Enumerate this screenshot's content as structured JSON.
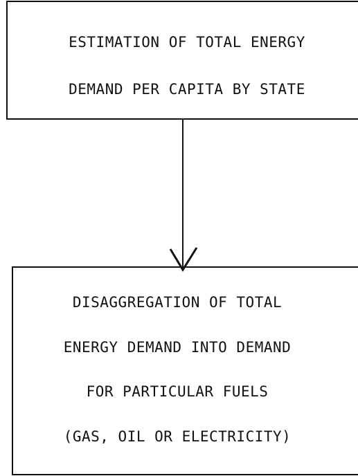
{
  "nodes": [
    {
      "lines": [
        "ESTIMATION OF TOTAL ENERGY",
        "DEMAND PER CAPITA BY STATE"
      ]
    },
    {
      "lines": [
        "DISAGGREGATION OF TOTAL",
        "ENERGY DEMAND INTO DEMAND",
        "FOR PARTICULAR FUELS",
        "(GAS, OIL OR ELECTRICITY)"
      ]
    }
  ]
}
